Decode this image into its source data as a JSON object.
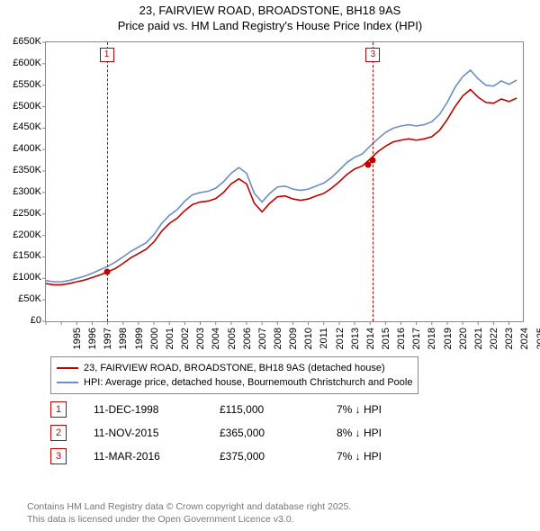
{
  "title_line1": "23, FAIRVIEW ROAD, BROADSTONE, BH18 9AS",
  "title_line2": "Price paid vs. HM Land Registry's House Price Index (HPI)",
  "chart": {
    "type": "line",
    "background_color": "#ffffff",
    "border_color": "#888888",
    "xlim": [
      1995,
      2025.9
    ],
    "ylim": [
      0,
      650
    ],
    "yticks": [
      0,
      50,
      100,
      150,
      200,
      250,
      300,
      350,
      400,
      450,
      500,
      550,
      600,
      650
    ],
    "ytick_labels": [
      "£0",
      "£50K",
      "£100K",
      "£150K",
      "£200K",
      "£250K",
      "£300K",
      "£350K",
      "£400K",
      "£450K",
      "£500K",
      "£550K",
      "£600K",
      "£650K"
    ],
    "xticks": [
      1995,
      1996,
      1997,
      1998,
      1999,
      2000,
      2001,
      2002,
      2003,
      2004,
      2005,
      2006,
      2007,
      2008,
      2009,
      2010,
      2011,
      2012,
      2013,
      2014,
      2015,
      2016,
      2017,
      2018,
      2019,
      2020,
      2021,
      2022,
      2023,
      2024,
      2025
    ],
    "title_fontsize": 13,
    "tick_fontsize": 11,
    "line_width": 1.6,
    "series": [
      {
        "name": "property",
        "label": "23, FAIRVIEW ROAD, BROADSTONE, BH18 9AS (detached house)",
        "color": "#c00000",
        "data": [
          [
            1995,
            88
          ],
          [
            1995.5,
            85
          ],
          [
            1996,
            85
          ],
          [
            1996.5,
            88
          ],
          [
            1997,
            92
          ],
          [
            1997.5,
            96
          ],
          [
            1998,
            102
          ],
          [
            1998.5,
            108
          ],
          [
            1999,
            115
          ],
          [
            1999.5,
            123
          ],
          [
            2000,
            135
          ],
          [
            2000.5,
            148
          ],
          [
            2001,
            158
          ],
          [
            2001.5,
            168
          ],
          [
            2002,
            185
          ],
          [
            2002.5,
            210
          ],
          [
            2003,
            228
          ],
          [
            2003.5,
            240
          ],
          [
            2004,
            258
          ],
          [
            2004.5,
            272
          ],
          [
            2005,
            278
          ],
          [
            2005.5,
            280
          ],
          [
            2006,
            286
          ],
          [
            2006.5,
            300
          ],
          [
            2007,
            320
          ],
          [
            2007.5,
            332
          ],
          [
            2008,
            320
          ],
          [
            2008.5,
            275
          ],
          [
            2009,
            255
          ],
          [
            2009.5,
            275
          ],
          [
            2010,
            290
          ],
          [
            2010.5,
            292
          ],
          [
            2011,
            285
          ],
          [
            2011.5,
            282
          ],
          [
            2012,
            285
          ],
          [
            2012.5,
            292
          ],
          [
            2013,
            298
          ],
          [
            2013.5,
            310
          ],
          [
            2014,
            325
          ],
          [
            2014.5,
            342
          ],
          [
            2015,
            355
          ],
          [
            2015.5,
            362
          ],
          [
            2016,
            378
          ],
          [
            2016.5,
            395
          ],
          [
            2017,
            408
          ],
          [
            2017.5,
            418
          ],
          [
            2018,
            422
          ],
          [
            2018.5,
            425
          ],
          [
            2019,
            422
          ],
          [
            2019.5,
            425
          ],
          [
            2020,
            430
          ],
          [
            2020.5,
            445
          ],
          [
            2021,
            470
          ],
          [
            2021.5,
            500
          ],
          [
            2022,
            525
          ],
          [
            2022.5,
            540
          ],
          [
            2023,
            522
          ],
          [
            2023.5,
            510
          ],
          [
            2024,
            508
          ],
          [
            2024.5,
            518
          ],
          [
            2025,
            512
          ],
          [
            2025.5,
            520
          ]
        ]
      },
      {
        "name": "hpi",
        "label": "HPI: Average price, detached house, Bournemouth Christchurch and Poole",
        "color": "#6a8fc5",
        "data": [
          [
            1995,
            95
          ],
          [
            1995.5,
            92
          ],
          [
            1996,
            92
          ],
          [
            1996.5,
            95
          ],
          [
            1997,
            100
          ],
          [
            1997.5,
            105
          ],
          [
            1998,
            112
          ],
          [
            1998.5,
            120
          ],
          [
            1999,
            128
          ],
          [
            1999.5,
            138
          ],
          [
            2000,
            150
          ],
          [
            2000.5,
            163
          ],
          [
            2001,
            173
          ],
          [
            2001.5,
            183
          ],
          [
            2002,
            202
          ],
          [
            2002.5,
            228
          ],
          [
            2003,
            247
          ],
          [
            2003.5,
            260
          ],
          [
            2004,
            280
          ],
          [
            2004.5,
            295
          ],
          [
            2005,
            300
          ],
          [
            2005.5,
            303
          ],
          [
            2006,
            310
          ],
          [
            2006.5,
            325
          ],
          [
            2007,
            345
          ],
          [
            2007.5,
            358
          ],
          [
            2008,
            345
          ],
          [
            2008.5,
            298
          ],
          [
            2009,
            278
          ],
          [
            2009.5,
            298
          ],
          [
            2010,
            313
          ],
          [
            2010.5,
            315
          ],
          [
            2011,
            308
          ],
          [
            2011.5,
            305
          ],
          [
            2012,
            308
          ],
          [
            2012.5,
            315
          ],
          [
            2013,
            322
          ],
          [
            2013.5,
            335
          ],
          [
            2014,
            352
          ],
          [
            2014.5,
            370
          ],
          [
            2015,
            382
          ],
          [
            2015.5,
            390
          ],
          [
            2016,
            408
          ],
          [
            2016.5,
            425
          ],
          [
            2017,
            440
          ],
          [
            2017.5,
            450
          ],
          [
            2018,
            455
          ],
          [
            2018.5,
            458
          ],
          [
            2019,
            455
          ],
          [
            2019.5,
            458
          ],
          [
            2020,
            465
          ],
          [
            2020.5,
            482
          ],
          [
            2021,
            510
          ],
          [
            2021.5,
            545
          ],
          [
            2022,
            570
          ],
          [
            2022.5,
            585
          ],
          [
            2023,
            565
          ],
          [
            2023.5,
            550
          ],
          [
            2024,
            548
          ],
          [
            2024.5,
            560
          ],
          [
            2025,
            552
          ],
          [
            2025.5,
            562
          ]
        ]
      }
    ],
    "sale_points": [
      {
        "x": 1998.94,
        "y": 115,
        "color": "#c00000"
      },
      {
        "x": 2015.86,
        "y": 365,
        "color": "#c00000"
      },
      {
        "x": 2016.19,
        "y": 375,
        "color": "#c00000"
      }
    ],
    "markers": [
      {
        "label": "1",
        "x": 1998.94,
        "vline": true
      },
      {
        "label": "3",
        "x": 2016.19,
        "vline": true
      }
    ]
  },
  "legend": {
    "rows": [
      {
        "color": "#c00000",
        "label": "23, FAIRVIEW ROAD, BROADSTONE, BH18 9AS (detached house)"
      },
      {
        "color": "#6a8fc5",
        "label": "HPI: Average price, detached house, Bournemouth Christchurch and Poole"
      }
    ]
  },
  "sales": [
    {
      "n": "1",
      "date": "11-DEC-1998",
      "price": "£115,000",
      "rel": "7% ↓ HPI"
    },
    {
      "n": "2",
      "date": "11-NOV-2015",
      "price": "£365,000",
      "rel": "8% ↓ HPI"
    },
    {
      "n": "3",
      "date": "11-MAR-2016",
      "price": "£375,000",
      "rel": "7% ↓ HPI"
    }
  ],
  "footer_line1": "Contains HM Land Registry data © Crown copyright and database right 2025.",
  "footer_line2": "This data is licensed under the Open Government Licence v3.0."
}
